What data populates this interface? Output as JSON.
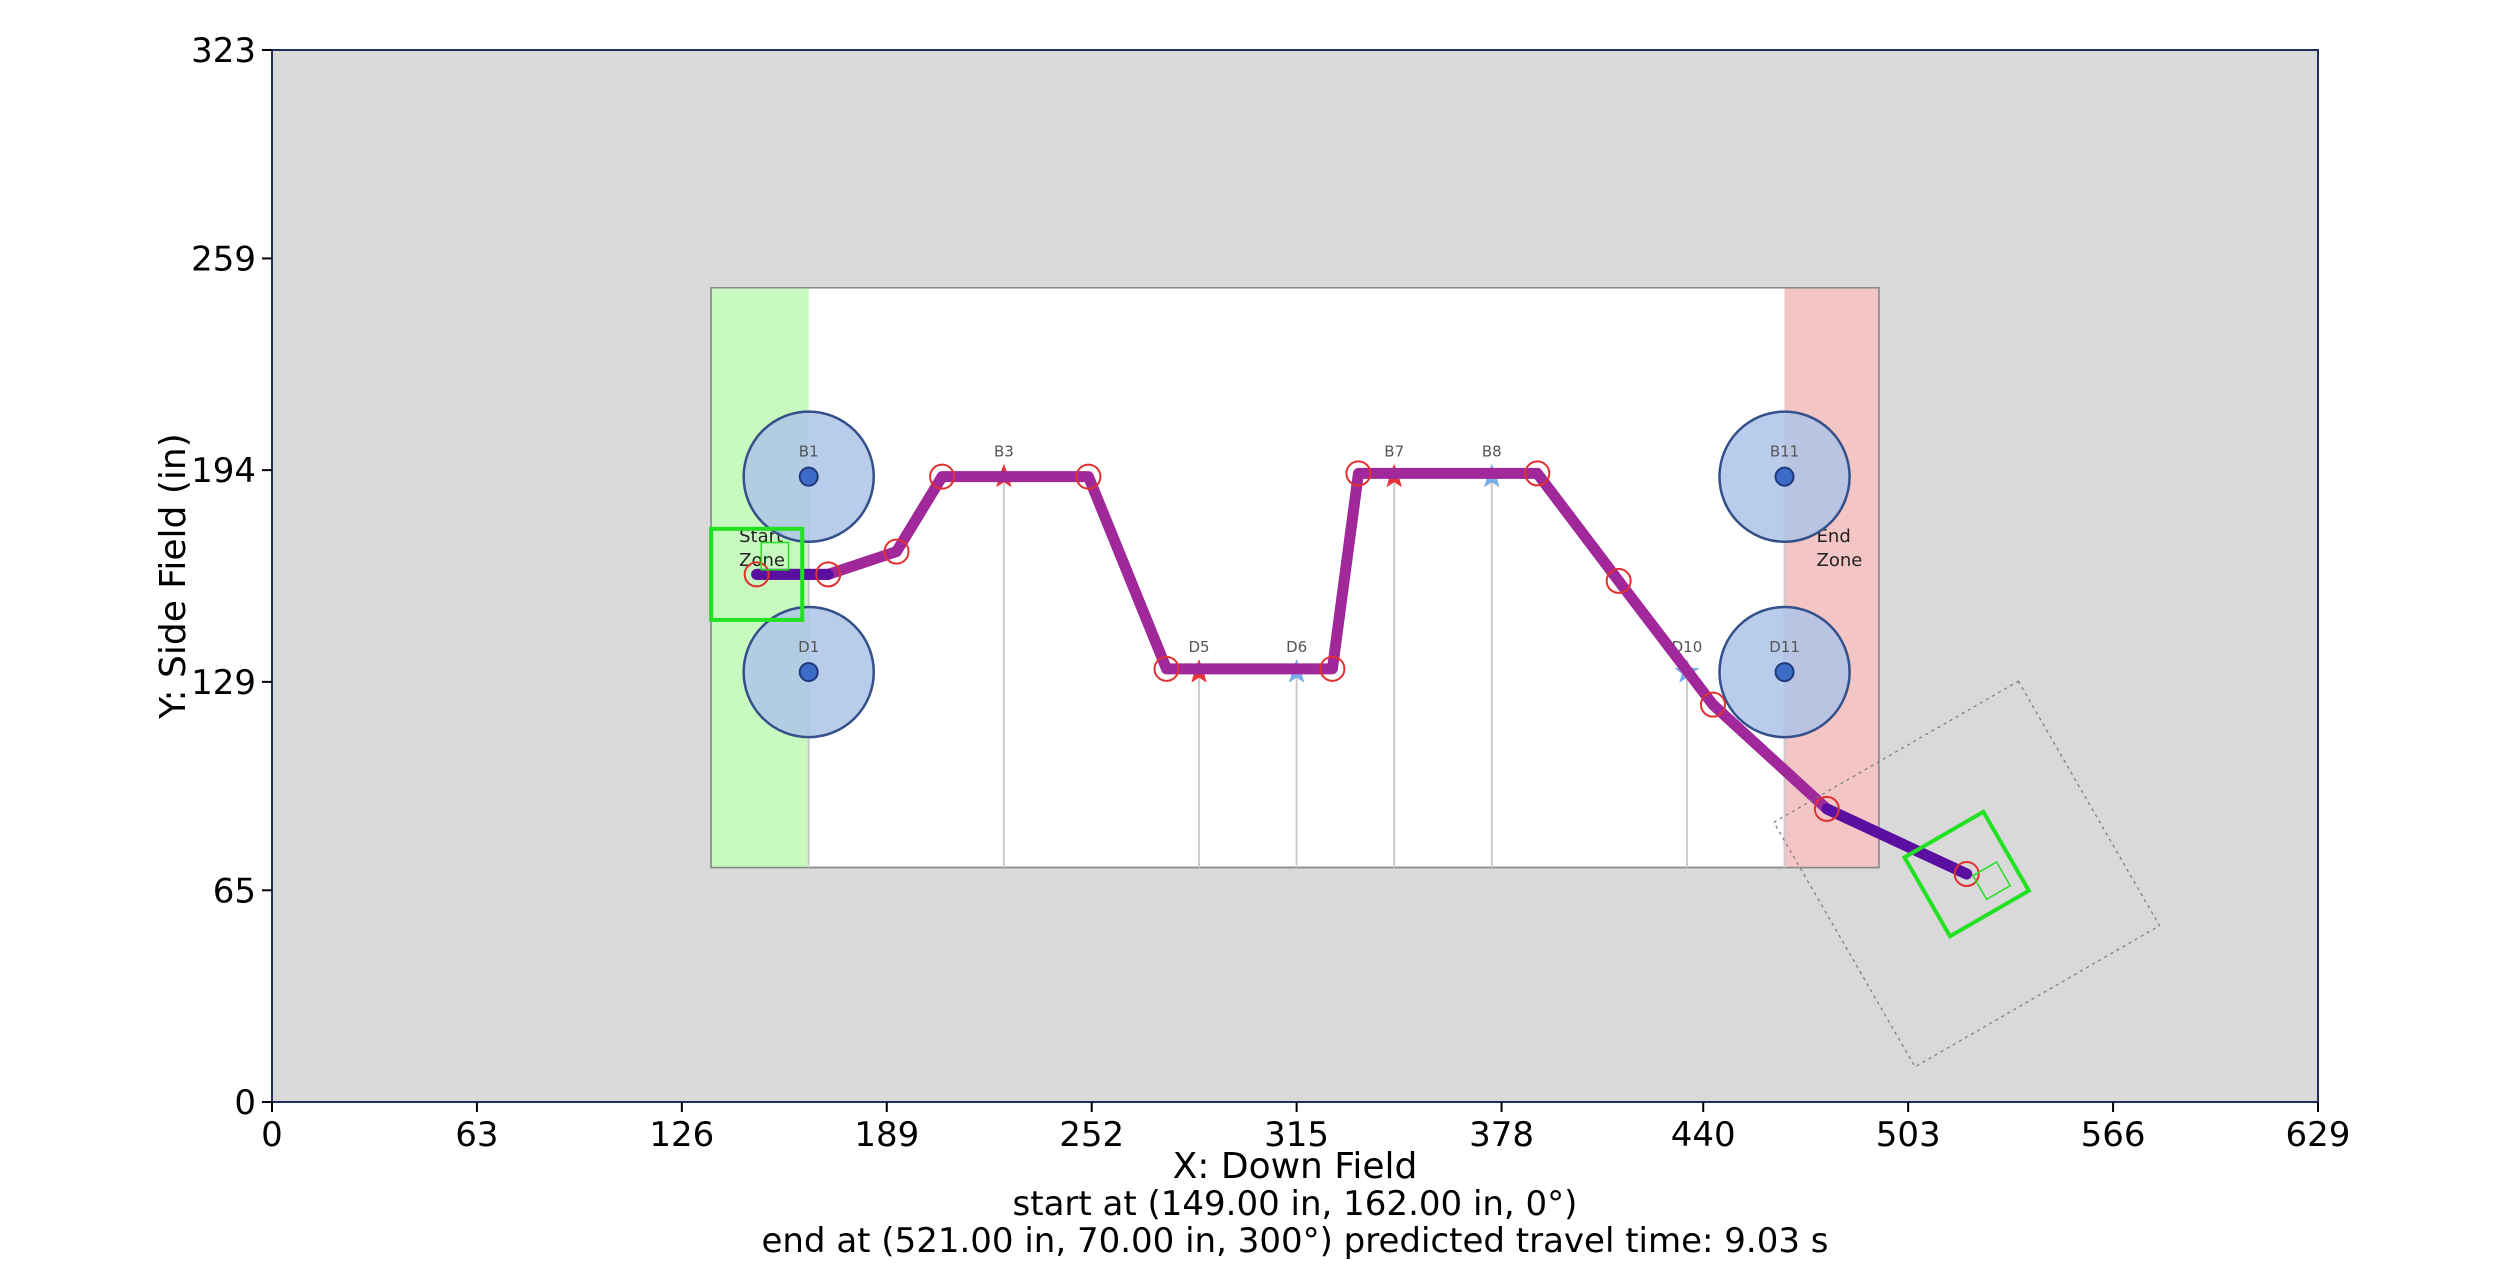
{
  "chart_data": {
    "type": "scatter",
    "title": "",
    "xlabel": "X: Down Field",
    "ylabel": "Y: Side Field (in)",
    "xlim": [
      0,
      629
    ],
    "ylim": [
      0,
      323
    ],
    "x_ticks": [
      0,
      63,
      126,
      189,
      252,
      315,
      378,
      440,
      503,
      566,
      629
    ],
    "y_ticks": [
      0,
      65,
      129,
      194,
      259,
      323
    ],
    "grid": false,
    "captions": [
      "start at (149.00 in, 162.00 in, 0°)",
      "end at (521.00 in, 70.00 in, 300°) predicted travel time: 9.03 s"
    ],
    "field": {
      "x_range": [
        135,
        494
      ],
      "y_range": [
        72,
        250
      ],
      "start_zone": {
        "x_range": [
          135,
          165
        ],
        "labels": [
          "Start",
          "Zone"
        ]
      },
      "end_zone": {
        "x_range": [
          465,
          494
        ],
        "labels": [
          "End",
          "Zone"
        ]
      },
      "grid_lines_x": [
        165,
        225,
        285,
        315,
        345,
        375,
        435,
        465
      ]
    },
    "obstacles": [
      {
        "label": "B1",
        "x": 165,
        "y": 192,
        "radius": 20
      },
      {
        "label": "D1",
        "x": 165,
        "y": 132,
        "radius": 20
      },
      {
        "label": "B11",
        "x": 465,
        "y": 192,
        "radius": 20
      },
      {
        "label": "D11",
        "x": 465,
        "y": 132,
        "radius": 20
      }
    ],
    "markers": [
      {
        "label": "B3",
        "x": 225,
        "y": 192,
        "color": "#e8323c"
      },
      {
        "label": "D5",
        "x": 285,
        "y": 132,
        "color": "#e8323c"
      },
      {
        "label": "D6",
        "x": 315,
        "y": 132,
        "color": "#7aaee8"
      },
      {
        "label": "B7",
        "x": 345,
        "y": 192,
        "color": "#e8323c"
      },
      {
        "label": "B8",
        "x": 375,
        "y": 192,
        "color": "#7aaee8"
      },
      {
        "label": "D10",
        "x": 435,
        "y": 132,
        "color": "#7aaee8"
      }
    ],
    "waypoints": [
      {
        "x": 149,
        "y": 162
      },
      {
        "x": 171,
        "y": 162
      },
      {
        "x": 192,
        "y": 169
      },
      {
        "x": 206,
        "y": 192
      },
      {
        "x": 251,
        "y": 192
      },
      {
        "x": 275,
        "y": 133
      },
      {
        "x": 326,
        "y": 133
      },
      {
        "x": 334,
        "y": 193
      },
      {
        "x": 389,
        "y": 193
      },
      {
        "x": 414,
        "y": 160
      },
      {
        "x": 443,
        "y": 122
      },
      {
        "x": 478,
        "y": 90
      },
      {
        "x": 521,
        "y": 70
      }
    ],
    "series": [
      {
        "x": [
          149,
          171,
          192,
          206,
          251,
          275,
          326,
          334,
          389,
          414,
          443,
          478,
          521
        ],
        "y": [
          162,
          162,
          169,
          192,
          192,
          133,
          133,
          193,
          193,
          160,
          122,
          90,
          70
        ]
      }
    ],
    "robot": {
      "start": {
        "x": 149,
        "y": 162,
        "heading_deg": 0
      },
      "end": {
        "x": 521,
        "y": 70,
        "heading_deg": 300
      },
      "size": 28,
      "color": "#22e022"
    },
    "colors": {
      "background": "#d9d9d9",
      "path_start": "#5a0fa0",
      "path_main": "#a0289a",
      "waypoint": "#e03030",
      "obstacle_fill": "#aec3e8",
      "obstacle_stroke": "#34508a",
      "start_zone": "#c8fac0",
      "end_zone": "#f3c5c5"
    }
  }
}
